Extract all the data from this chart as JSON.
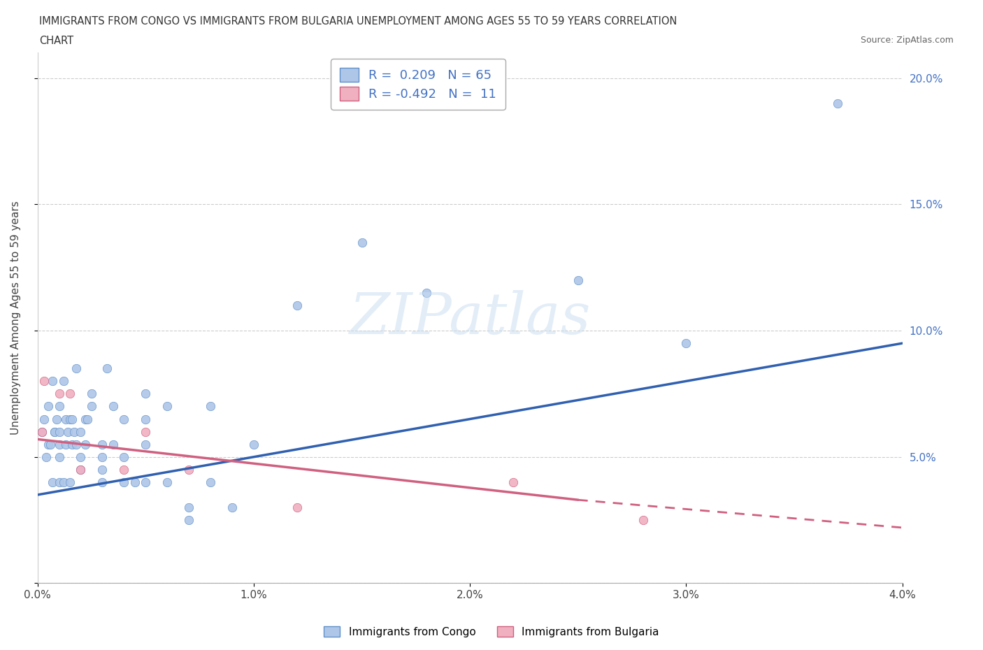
{
  "title_line1": "IMMIGRANTS FROM CONGO VS IMMIGRANTS FROM BULGARIA UNEMPLOYMENT AMONG AGES 55 TO 59 YEARS CORRELATION",
  "title_line2": "CHART",
  "source": "Source: ZipAtlas.com",
  "ylabel": "Unemployment Among Ages 55 to 59 years",
  "xlim": [
    0.0,
    0.04
  ],
  "ylim": [
    0.0,
    0.21
  ],
  "xticks": [
    0.0,
    0.01,
    0.02,
    0.03,
    0.04
  ],
  "xtick_labels": [
    "0.0%",
    "1.0%",
    "2.0%",
    "3.0%",
    "4.0%"
  ],
  "yticks_left": [
    0.0,
    0.05,
    0.1,
    0.15,
    0.2
  ],
  "ytick_labels_left": [
    "",
    "",
    "",
    "",
    ""
  ],
  "yticks_right": [
    0.05,
    0.1,
    0.15,
    0.2
  ],
  "ytick_labels_right": [
    "5.0%",
    "10.0%",
    "15.0%",
    "20.0%"
  ],
  "congo_color": "#aec6e8",
  "congo_edge_color": "#6090c8",
  "congo_line_color": "#3060b0",
  "bulgaria_color": "#f0b0c0",
  "bulgaria_edge_color": "#d06080",
  "bulgaria_line_color": "#d06080",
  "legend_label_congo": "R =  0.209   N = 65",
  "legend_label_bulgaria": "R = -0.492   N =  11",
  "congo_scatter_x": [
    0.0002,
    0.0003,
    0.0004,
    0.0005,
    0.0005,
    0.0006,
    0.0007,
    0.0007,
    0.0008,
    0.0008,
    0.0009,
    0.001,
    0.001,
    0.001,
    0.001,
    0.001,
    0.0012,
    0.0012,
    0.0013,
    0.0013,
    0.0014,
    0.0015,
    0.0015,
    0.0016,
    0.0016,
    0.0017,
    0.0018,
    0.0018,
    0.002,
    0.002,
    0.002,
    0.0022,
    0.0022,
    0.0023,
    0.0025,
    0.0025,
    0.003,
    0.003,
    0.003,
    0.003,
    0.0032,
    0.0035,
    0.0035,
    0.004,
    0.004,
    0.004,
    0.0045,
    0.005,
    0.005,
    0.005,
    0.005,
    0.006,
    0.006,
    0.007,
    0.007,
    0.008,
    0.008,
    0.009,
    0.01,
    0.012,
    0.015,
    0.018,
    0.025,
    0.03,
    0.037
  ],
  "congo_scatter_y": [
    0.06,
    0.065,
    0.05,
    0.055,
    0.07,
    0.055,
    0.04,
    0.08,
    0.06,
    0.06,
    0.065,
    0.04,
    0.05,
    0.055,
    0.06,
    0.07,
    0.04,
    0.08,
    0.055,
    0.065,
    0.06,
    0.04,
    0.065,
    0.055,
    0.065,
    0.06,
    0.055,
    0.085,
    0.045,
    0.05,
    0.06,
    0.055,
    0.065,
    0.065,
    0.07,
    0.075,
    0.04,
    0.045,
    0.05,
    0.055,
    0.085,
    0.055,
    0.07,
    0.04,
    0.05,
    0.065,
    0.04,
    0.04,
    0.055,
    0.065,
    0.075,
    0.04,
    0.07,
    0.03,
    0.025,
    0.04,
    0.07,
    0.03,
    0.055,
    0.11,
    0.135,
    0.115,
    0.12,
    0.095,
    0.19
  ],
  "bulgaria_scatter_x": [
    0.0002,
    0.0003,
    0.001,
    0.0015,
    0.002,
    0.004,
    0.005,
    0.007,
    0.012,
    0.022,
    0.028
  ],
  "bulgaria_scatter_y": [
    0.06,
    0.08,
    0.075,
    0.075,
    0.045,
    0.045,
    0.06,
    0.045,
    0.03,
    0.04,
    0.025
  ],
  "congo_trend_x0": 0.0,
  "congo_trend_y0": 0.035,
  "congo_trend_x1": 0.04,
  "congo_trend_y1": 0.095,
  "bulgaria_trend_x0": 0.0,
  "bulgaria_trend_y0": 0.057,
  "bulgaria_trend_x1": 0.025,
  "bulgaria_trend_y1": 0.033,
  "bulgaria_trend_dash_x0": 0.025,
  "bulgaria_trend_dash_y0": 0.033,
  "bulgaria_trend_dash_x1": 0.04,
  "bulgaria_trend_dash_y1": 0.022
}
